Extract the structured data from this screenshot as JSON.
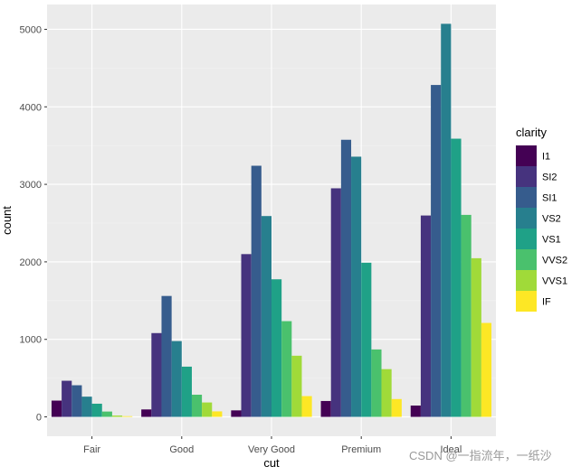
{
  "chart_data": {
    "type": "bar",
    "xlabel": "cut",
    "ylabel": "count",
    "categories": [
      "Fair",
      "Good",
      "Very Good",
      "Premium",
      "Ideal"
    ],
    "y_ticks": [
      0,
      1000,
      2000,
      3000,
      4000,
      5000
    ],
    "ylim": [
      -250,
      5320
    ],
    "grid": true,
    "legend": {
      "title": "clarity",
      "position": "right"
    },
    "series": [
      {
        "name": "I1",
        "color": "#440154",
        "values": [
          210,
          96,
          84,
          205,
          146
        ]
      },
      {
        "name": "SI2",
        "color": "#46337E",
        "values": [
          466,
          1081,
          2100,
          2949,
          2598
        ]
      },
      {
        "name": "SI1",
        "color": "#365C8D",
        "values": [
          408,
          1560,
          3240,
          3575,
          4282
        ]
      },
      {
        "name": "VS2",
        "color": "#277F8E",
        "values": [
          261,
          978,
          2591,
          3357,
          5071
        ]
      },
      {
        "name": "VS1",
        "color": "#1FA187",
        "values": [
          170,
          648,
          1775,
          1989,
          3589
        ]
      },
      {
        "name": "VVS2",
        "color": "#4AC16D",
        "values": [
          69,
          286,
          1235,
          870,
          2606
        ]
      },
      {
        "name": "VVS1",
        "color": "#A0DA39",
        "values": [
          17,
          186,
          789,
          616,
          2047
        ]
      },
      {
        "name": "IF",
        "color": "#FDE725",
        "values": [
          9,
          71,
          268,
          230,
          1212
        ]
      }
    ]
  },
  "colors": {
    "panel_background": "#EBEBEB",
    "grid_major": "#FFFFFF",
    "grid_minor": "#F3F3F3"
  },
  "watermark": "CSDN @一指流年，一纸沙"
}
